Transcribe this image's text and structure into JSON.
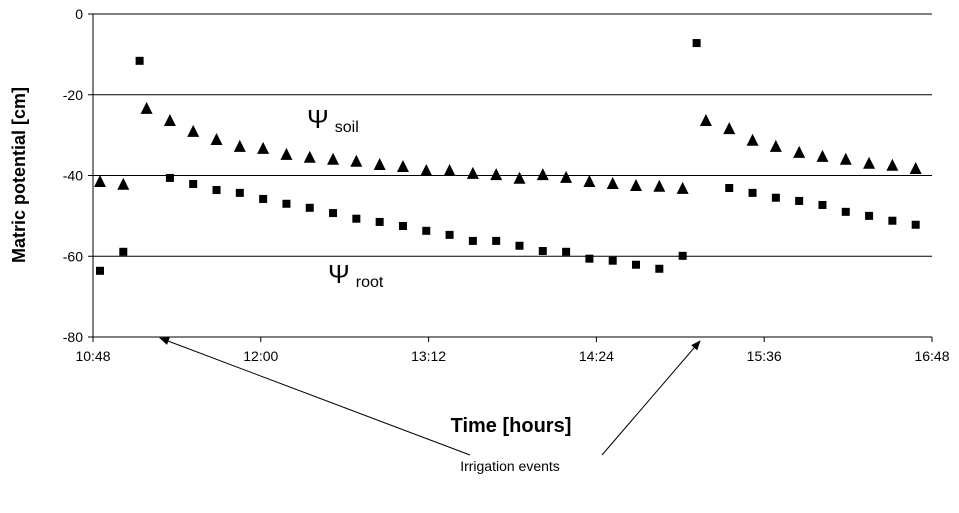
{
  "chart_data": {
    "type": "scatter",
    "xlabel": "Time [hours]",
    "ylabel": "Matric potential [cm]",
    "xlim": [
      648,
      1008
    ],
    "xticks": [
      {
        "value": 648,
        "label": "10:48"
      },
      {
        "value": 720,
        "label": "12:00"
      },
      {
        "value": 792,
        "label": "13:12"
      },
      {
        "value": 864,
        "label": "14:24"
      },
      {
        "value": 936,
        "label": "15:36"
      },
      {
        "value": 1008,
        "label": "16:48"
      }
    ],
    "ylim": [
      -80,
      0
    ],
    "yticks": [
      -80,
      -60,
      -40,
      -20,
      0
    ],
    "grid": true,
    "series": [
      {
        "marker": "triangle",
        "color": "#000000",
        "x": [
          651,
          661,
          671,
          681,
          691,
          701,
          711,
          721,
          731,
          741,
          751,
          761,
          771,
          781,
          791,
          801,
          811,
          821,
          831,
          841,
          851,
          861,
          871,
          881,
          891,
          901,
          911,
          921,
          931,
          941,
          951,
          961,
          971,
          981,
          991,
          1001
        ],
        "values": [
          -41.6,
          -42.3,
          -23.5,
          -26.5,
          -29.2,
          -31.2,
          -32.9,
          -33.4,
          -34.9,
          -35.6,
          -36.1,
          -36.6,
          -37.4,
          -37.9,
          -38.9,
          -38.9,
          -39.6,
          -39.9,
          -40.8,
          -39.9,
          -40.6,
          -41.6,
          -42.1,
          -42.6,
          -42.8,
          -43.3,
          -26.5,
          -28.5,
          -31.4,
          -32.9,
          -34.4,
          -35.4,
          -36.1,
          -37.1,
          -37.6,
          -38.4
        ]
      },
      {
        "marker": "square",
        "color": "#000000",
        "x": [
          651,
          661,
          668,
          681,
          691,
          701,
          711,
          721,
          731,
          741,
          751,
          761,
          771,
          781,
          791,
          801,
          811,
          821,
          831,
          841,
          851,
          861,
          871,
          881,
          891,
          901,
          907,
          921,
          931,
          941,
          951,
          961,
          971,
          981,
          991,
          1001
        ],
        "values": [
          -63.6,
          -58.9,
          -11.6,
          -40.6,
          -42.1,
          -43.6,
          -44.3,
          -45.8,
          -47.0,
          -48.0,
          -49.3,
          -50.7,
          -51.5,
          -52.5,
          -53.7,
          -54.7,
          -56.2,
          -56.2,
          -57.4,
          -58.7,
          -58.9,
          -60.6,
          -61.1,
          -62.1,
          -63.1,
          -59.9,
          -7.2,
          -43.1,
          -44.3,
          -45.5,
          -46.3,
          -47.3,
          -49.0,
          -50.0,
          -51.2,
          -52.2
        ]
      }
    ],
    "annotations": [
      {
        "symbol": "Ψ",
        "subscript": "soil"
      },
      {
        "symbol": "Ψ",
        "subscript": "root"
      },
      {
        "text": "Irrigation events"
      }
    ]
  }
}
